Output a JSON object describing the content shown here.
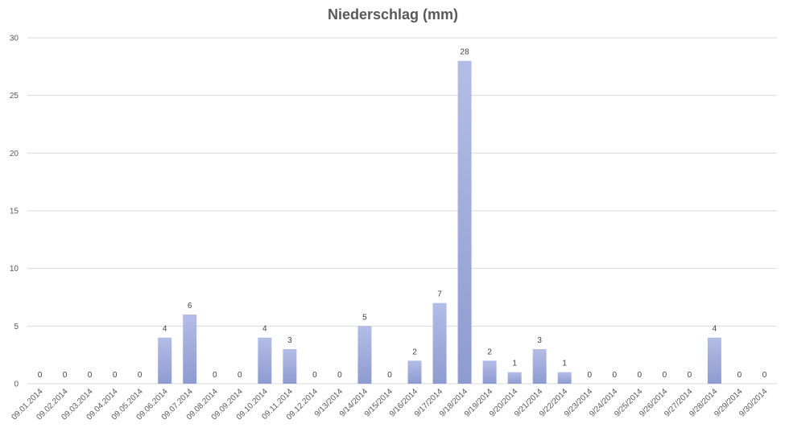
{
  "chart_data": {
    "type": "bar",
    "title": "Niederschlag (mm)",
    "xlabel": "",
    "ylabel": "",
    "ylim": [
      0,
      30
    ],
    "yticks": [
      0,
      5,
      10,
      15,
      20,
      25,
      30
    ],
    "grid": true,
    "legend": "none",
    "categories": [
      "09.01.2014",
      "09.02.2014",
      "09.03.2014",
      "09.04.2014",
      "09.05.2014",
      "09.06.2014",
      "09.07.2014",
      "09.08.2014",
      "09.09.2014",
      "09.10.2014",
      "09.11.2014",
      "09.12.2014",
      "9/13/2014",
      "9/14/2014",
      "9/15/2014",
      "9/16/2014",
      "9/17/2014",
      "9/18/2014",
      "9/19/2014",
      "9/20/2014",
      "9/21/2014",
      "9/22/2014",
      "9/23/2014",
      "9/24/2014",
      "9/25/2014",
      "9/26/2014",
      "9/27/2014",
      "9/28/2014",
      "9/29/2014",
      "9/30/2014"
    ],
    "values": [
      0,
      0,
      0,
      0,
      0,
      4,
      6,
      0,
      0,
      4,
      3,
      0,
      0,
      5,
      0,
      2,
      7,
      28,
      2,
      1,
      3,
      1,
      0,
      0,
      0,
      0,
      0,
      4,
      0,
      0
    ],
    "colors": {
      "bar_top": "#b4bde6",
      "bar_bottom": "#8e9bd0",
      "grid": "#d9d9d9",
      "text": "#595959"
    }
  }
}
